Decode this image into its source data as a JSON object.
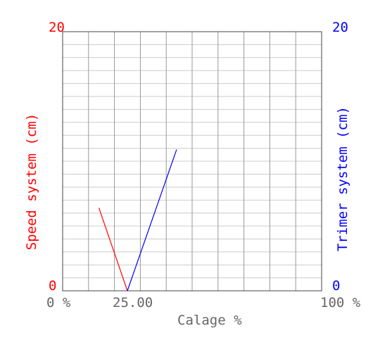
{
  "chart_data": {
    "type": "line",
    "xlabel": "Calage %",
    "ylabel_left": "Speed system (cm)",
    "ylabel_right": "Trimer system (cm)",
    "xlim": [
      0,
      100
    ],
    "ylim_left": [
      0,
      20
    ],
    "ylim_right": [
      0,
      20
    ],
    "x_tick_labels": {
      "min": "0 %",
      "max": "100 %",
      "marker": "25.00"
    },
    "y_left_tick_labels": {
      "min": "0",
      "max": "20"
    },
    "y_right_tick_labels": {
      "min": "0",
      "max": "20"
    },
    "grid": {
      "x_divisions": 10,
      "y_divisions": 20
    },
    "colors": {
      "speed": "#ff0000",
      "trimer": "#0000ff",
      "axis_x": "#666666",
      "grid_major": "#999999",
      "grid_minor": "#cccccc"
    },
    "series": [
      {
        "axis": "left",
        "color": "#ff0000",
        "x": [
          14,
          25
        ],
        "y": [
          6.4,
          0
        ]
      },
      {
        "axis": "right",
        "color": "#0000ff",
        "x": [
          25,
          44
        ],
        "y": [
          0,
          10.9
        ]
      }
    ]
  }
}
